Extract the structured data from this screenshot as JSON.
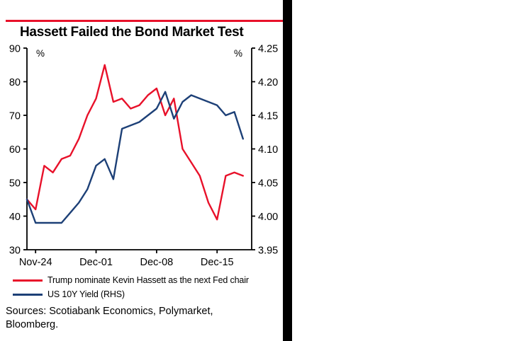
{
  "colors": {
    "accent_red": "#e8112a",
    "navy": "#1d4077",
    "axis": "#000000",
    "background": "#ffffff"
  },
  "chart_data": {
    "type": "line",
    "title": "Hassett Failed the Bond Market Test",
    "left_axis": {
      "label": "%",
      "min": 30,
      "max": 90,
      "ticks": [
        90,
        80,
        70,
        60,
        50,
        40,
        30
      ]
    },
    "right_axis": {
      "label": "%",
      "min": 3.95,
      "max": 4.25,
      "ticks": [
        "4.25",
        "4.20",
        "4.15",
        "4.10",
        "4.05",
        "4.00",
        "3.95"
      ]
    },
    "x_slots": 27,
    "x_ticks": [
      {
        "index": 1,
        "label": "Nov-24"
      },
      {
        "index": 8,
        "label": "Dec-01"
      },
      {
        "index": 15,
        "label": "Dec-08"
      },
      {
        "index": 22,
        "label": "Dec-15"
      }
    ],
    "series": [
      {
        "name": "Trump nominate Kevin Hassett as the next Fed chair",
        "axis": "left",
        "color": "#e8112a",
        "values": [
          45,
          42,
          55,
          53,
          57,
          58,
          63,
          70,
          75,
          85,
          74,
          75,
          72,
          73,
          76,
          78,
          70,
          75,
          60,
          56,
          52,
          44,
          39,
          52,
          53,
          52
        ]
      },
      {
        "name": "US 10Y Yield (RHS)",
        "axis": "right",
        "color": "#1d4077",
        "values": [
          4.025,
          3.99,
          3.99,
          3.99,
          3.99,
          4.005,
          4.02,
          4.04,
          4.075,
          4.085,
          4.055,
          4.13,
          4.135,
          4.14,
          4.15,
          4.16,
          4.185,
          4.145,
          4.17,
          4.18,
          4.175,
          4.17,
          4.165,
          4.15,
          4.155,
          4.115
        ]
      }
    ],
    "legend_position": "bottom",
    "grid": false
  },
  "footer": {
    "sources_line1": "Sources: Scotiabank Economics, Polymarket,",
    "sources_line2": "Bloomberg."
  }
}
